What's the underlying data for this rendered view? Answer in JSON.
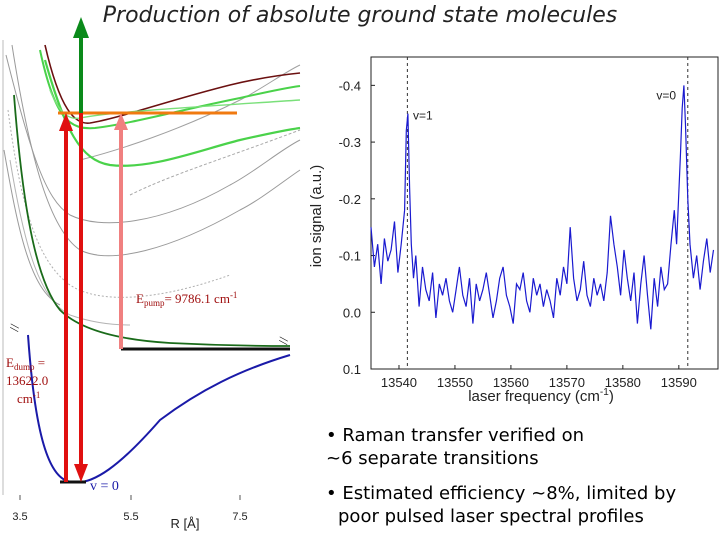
{
  "title": "Production of absolute ground state molecules",
  "potential_diagram": {
    "epump_label": "E",
    "epump_sub": "pump",
    "epump_value": "= 9786.1 cm",
    "epump_unit_exp": "-1",
    "edump_label": "E",
    "edump_sub": "dump",
    "edump_value_1": " =",
    "edump_value_2": "13622.0",
    "edump_value_3": "cm",
    "edump_unit_exp": "-1",
    "v0_label": "v = 0",
    "axis_break": "//",
    "x_tick_labels": [
      "3.5",
      "5.5",
      "7.5"
    ],
    "x_axis_label": "R [Å]",
    "colors": {
      "pump_arrow": "#f08080",
      "dump_arrow": "#e01010",
      "up_arrow": "#0a8a1a",
      "orange_line": "#f07a10",
      "ground_state": "#1a1aa8",
      "excited_dark_green": "#1a6b1a",
      "excited_light_green": "#4ad24a",
      "excited_brown": "#6b1010"
    }
  },
  "chart_data": {
    "type": "line",
    "title": "",
    "xlabel": "laser frequency (cm-1)",
    "ylabel": "ion signal (a.u.)",
    "xlim": [
      13535,
      13597
    ],
    "ylim": [
      0.1,
      -0.45
    ],
    "y_inverted": true,
    "x_ticks": [
      13540,
      13550,
      13560,
      13570,
      13580,
      13590
    ],
    "y_ticks": [
      -0.4,
      -0.3,
      -0.2,
      -0.1,
      0.0,
      0.1
    ],
    "y_tick_labels": [
      "-0.4",
      "-0.3",
      "-0.2",
      "-0.1",
      "0.0",
      "0.1"
    ],
    "x_tick_labels": [
      "13540",
      "13550",
      "13560",
      "13570",
      "13580",
      "13590"
    ],
    "series": [
      {
        "name": "ion signal",
        "color": "#1a1ad0",
        "x": [
          13535.0,
          13535.6,
          13536.2,
          13536.8,
          13537.4,
          13538.0,
          13538.6,
          13539.2,
          13539.8,
          13540.4,
          13541.0,
          13541.3,
          13541.6,
          13541.9,
          13542.2,
          13542.6,
          13543.0,
          13543.6,
          13544.2,
          13544.8,
          13545.4,
          13546.0,
          13546.6,
          13547.2,
          13547.8,
          13548.4,
          13549.0,
          13549.6,
          13550.2,
          13550.8,
          13551.4,
          13552.0,
          13552.6,
          13553.2,
          13553.8,
          13554.4,
          13555.0,
          13555.6,
          13556.2,
          13556.8,
          13557.4,
          13558.0,
          13558.6,
          13559.2,
          13559.8,
          13560.4,
          13561.0,
          13561.6,
          13562.2,
          13562.8,
          13563.4,
          13564.0,
          13564.6,
          13565.2,
          13565.8,
          13566.4,
          13567.0,
          13567.6,
          13568.2,
          13568.8,
          13569.4,
          13570.0,
          13570.6,
          13571.2,
          13571.8,
          13572.4,
          13573.0,
          13573.6,
          13574.2,
          13574.8,
          13575.4,
          13576.0,
          13576.6,
          13577.2,
          13577.8,
          13578.4,
          13579.0,
          13579.6,
          13580.2,
          13580.8,
          13581.4,
          13582.0,
          13582.6,
          13583.2,
          13583.8,
          13584.4,
          13585.0,
          13585.6,
          13586.2,
          13586.8,
          13587.4,
          13588.0,
          13588.6,
          13589.2,
          13589.6,
          13590.0,
          13590.3,
          13590.6,
          13590.9,
          13591.2,
          13591.6,
          13592.0,
          13592.6,
          13593.2,
          13593.8,
          13594.4,
          13595.0,
          13595.6,
          13596.2
        ],
        "values": [
          -0.15,
          -0.08,
          -0.12,
          -0.05,
          -0.13,
          -0.09,
          -0.11,
          -0.16,
          -0.07,
          -0.12,
          -0.18,
          -0.32,
          -0.35,
          -0.22,
          -0.12,
          -0.06,
          -0.1,
          -0.01,
          -0.08,
          -0.04,
          -0.02,
          -0.07,
          0.01,
          -0.05,
          -0.03,
          -0.06,
          -0.02,
          0.0,
          -0.04,
          -0.08,
          -0.03,
          -0.01,
          -0.06,
          0.02,
          -0.05,
          -0.02,
          -0.04,
          -0.07,
          -0.03,
          0.01,
          -0.02,
          -0.06,
          -0.08,
          -0.03,
          -0.01,
          0.02,
          -0.05,
          -0.04,
          -0.07,
          -0.02,
          0.0,
          -0.06,
          -0.03,
          -0.05,
          -0.01,
          -0.04,
          -0.02,
          0.01,
          -0.06,
          -0.03,
          -0.08,
          -0.05,
          -0.15,
          -0.06,
          -0.02,
          -0.04,
          -0.09,
          -0.03,
          -0.01,
          -0.06,
          -0.03,
          -0.05,
          -0.02,
          -0.07,
          -0.17,
          -0.12,
          -0.08,
          -0.03,
          -0.11,
          -0.06,
          -0.02,
          -0.07,
          0.02,
          -0.05,
          -0.1,
          -0.03,
          0.03,
          -0.06,
          -0.01,
          -0.08,
          -0.04,
          -0.05,
          -0.12,
          -0.18,
          -0.12,
          -0.21,
          -0.28,
          -0.36,
          -0.4,
          -0.33,
          -0.2,
          -0.12,
          -0.06,
          -0.1,
          -0.04,
          -0.09,
          -0.13,
          -0.07,
          -0.11
        ]
      }
    ],
    "vlines": [
      13541.5,
      13591.6
    ],
    "annotations": [
      {
        "text": "v=1",
        "x": 13542.5,
        "y": -0.34
      },
      {
        "text": "v=0",
        "x": 13586.0,
        "y": -0.375
      }
    ]
  },
  "bullets": {
    "b1_line1": "• Raman transfer verified on",
    "b1_line2": "~6 separate transitions",
    "b2_line1": "• Estimated efficiency ~8%, limited by",
    "b2_line2": "poor pulsed laser spectral profiles"
  }
}
